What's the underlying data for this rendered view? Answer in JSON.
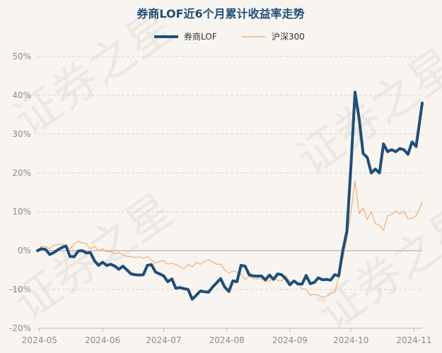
{
  "chart_data": {
    "type": "line",
    "title": "券商LOF近6个月累计收益率走势",
    "watermark": "证券之星",
    "legend_position": "top-center",
    "grid": true,
    "y_format": "percent",
    "ylim": [
      -20,
      50
    ],
    "y_ticks": [
      -20,
      -10,
      0,
      10,
      20,
      30,
      40,
      50
    ],
    "x_range": [
      "2024-04-30",
      "2024-11-05"
    ],
    "x_ticks": [
      {
        "label": "2024-05",
        "date": "2024-05-01"
      },
      {
        "label": "2024-06",
        "date": "2024-06-01"
      },
      {
        "label": "2024-07",
        "date": "2024-07-01"
      },
      {
        "label": "2024-08",
        "date": "2024-08-01"
      },
      {
        "label": "2024-09",
        "date": "2024-09-01"
      },
      {
        "label": "2024-10",
        "date": "2024-10-01"
      },
      {
        "label": "2024-11",
        "date": "2024-11-01"
      }
    ],
    "series": [
      {
        "name": "券商LOF",
        "color": "#1f4e79",
        "width": 4,
        "points": [
          [
            "2024-04-30",
            0
          ],
          [
            "2024-05-02",
            0.5
          ],
          [
            "2024-05-04",
            0.3
          ],
          [
            "2024-05-06",
            -1
          ],
          [
            "2024-05-08",
            -0.5
          ],
          [
            "2024-05-10",
            0.2
          ],
          [
            "2024-05-12",
            0.8
          ],
          [
            "2024-05-14",
            1.2
          ],
          [
            "2024-05-16",
            -1.5
          ],
          [
            "2024-05-18",
            -1.6
          ],
          [
            "2024-05-20",
            -0.1
          ],
          [
            "2024-05-22",
            0
          ],
          [
            "2024-05-24",
            -0.6
          ],
          [
            "2024-05-26",
            -0.5
          ],
          [
            "2024-05-28",
            -2.6
          ],
          [
            "2024-05-30",
            -3.8
          ],
          [
            "2024-06-01",
            -3
          ],
          [
            "2024-06-03",
            -3.8
          ],
          [
            "2024-06-05",
            -3.5
          ],
          [
            "2024-06-07",
            -4
          ],
          [
            "2024-06-09",
            -4.8
          ],
          [
            "2024-06-11",
            -4
          ],
          [
            "2024-06-13",
            -5
          ],
          [
            "2024-06-15",
            -6
          ],
          [
            "2024-06-17",
            -6.2
          ],
          [
            "2024-06-19",
            -6.3
          ],
          [
            "2024-06-21",
            -6.2
          ],
          [
            "2024-06-23",
            -3.8
          ],
          [
            "2024-06-25",
            -3.6
          ],
          [
            "2024-06-27",
            -5.5
          ],
          [
            "2024-06-29",
            -6
          ],
          [
            "2024-07-01",
            -6.5
          ],
          [
            "2024-07-03",
            -8
          ],
          [
            "2024-07-05",
            -7.3
          ],
          [
            "2024-07-07",
            -9.7
          ],
          [
            "2024-07-09",
            -9.5
          ],
          [
            "2024-07-11",
            -9.8
          ],
          [
            "2024-07-13",
            -10
          ],
          [
            "2024-07-15",
            -12.5
          ],
          [
            "2024-07-17",
            -11.5
          ],
          [
            "2024-07-19",
            -10.4
          ],
          [
            "2024-07-21",
            -10.6
          ],
          [
            "2024-07-23",
            -10.7
          ],
          [
            "2024-07-25",
            -9.4
          ],
          [
            "2024-07-27",
            -8.3
          ],
          [
            "2024-07-29",
            -7.2
          ],
          [
            "2024-07-31",
            -9.4
          ],
          [
            "2024-08-02",
            -10.5
          ],
          [
            "2024-08-04",
            -7.8
          ],
          [
            "2024-08-06",
            -8
          ],
          [
            "2024-08-08",
            -3.8
          ],
          [
            "2024-08-10",
            -4
          ],
          [
            "2024-08-12",
            -6.2
          ],
          [
            "2024-08-14",
            -6.5
          ],
          [
            "2024-08-16",
            -6.6
          ],
          [
            "2024-08-18",
            -6.5
          ],
          [
            "2024-08-20",
            -7.5
          ],
          [
            "2024-08-22",
            -6.3
          ],
          [
            "2024-08-24",
            -7.4
          ],
          [
            "2024-08-26",
            -6
          ],
          [
            "2024-08-28",
            -6.2
          ],
          [
            "2024-08-30",
            -7.3
          ],
          [
            "2024-09-01",
            -8.8
          ],
          [
            "2024-09-03",
            -7.8
          ],
          [
            "2024-09-05",
            -8.6
          ],
          [
            "2024-09-07",
            -8.6
          ],
          [
            "2024-09-09",
            -6.4
          ],
          [
            "2024-09-11",
            -8.5
          ],
          [
            "2024-09-13",
            -8.2
          ],
          [
            "2024-09-15",
            -7
          ],
          [
            "2024-09-17",
            -7.5
          ],
          [
            "2024-09-19",
            -7.4
          ],
          [
            "2024-09-21",
            -7.6
          ],
          [
            "2024-09-23",
            -6.2
          ],
          [
            "2024-09-25",
            -6.5
          ],
          [
            "2024-09-27",
            0
          ],
          [
            "2024-09-29",
            5
          ],
          [
            "2024-10-01",
            22
          ],
          [
            "2024-10-03",
            40.8
          ],
          [
            "2024-10-05",
            34
          ],
          [
            "2024-10-07",
            25
          ],
          [
            "2024-10-09",
            24
          ],
          [
            "2024-10-11",
            20
          ],
          [
            "2024-10-13",
            21
          ],
          [
            "2024-10-15",
            20
          ],
          [
            "2024-10-17",
            27.5
          ],
          [
            "2024-10-19",
            25.5
          ],
          [
            "2024-10-21",
            26
          ],
          [
            "2024-10-23",
            25.5
          ],
          [
            "2024-10-25",
            26.3
          ],
          [
            "2024-10-27",
            26
          ],
          [
            "2024-10-29",
            24.8
          ],
          [
            "2024-10-31",
            28
          ],
          [
            "2024-11-02",
            26.8
          ],
          [
            "2024-11-05",
            38
          ]
        ]
      },
      {
        "name": "沪深300",
        "color": "#f0b27a",
        "width": 1.3,
        "points": [
          [
            "2024-04-30",
            0
          ],
          [
            "2024-05-02",
            1.2
          ],
          [
            "2024-05-04",
            1
          ],
          [
            "2024-05-06",
            0.5
          ],
          [
            "2024-05-08",
            1.4
          ],
          [
            "2024-05-10",
            1.6
          ],
          [
            "2024-05-12",
            1.7
          ],
          [
            "2024-05-14",
            1
          ],
          [
            "2024-05-16",
            0.5
          ],
          [
            "2024-05-18",
            1.8
          ],
          [
            "2024-05-20",
            2.4
          ],
          [
            "2024-05-22",
            2
          ],
          [
            "2024-05-24",
            1.8
          ],
          [
            "2024-05-26",
            0.5
          ],
          [
            "2024-05-28",
            1.2
          ],
          [
            "2024-05-30",
            0
          ],
          [
            "2024-06-01",
            0.5
          ],
          [
            "2024-06-03",
            -0.3
          ],
          [
            "2024-06-05",
            -0.2
          ],
          [
            "2024-06-07",
            -0.8
          ],
          [
            "2024-06-09",
            -0.5
          ],
          [
            "2024-06-11",
            -1
          ],
          [
            "2024-06-13",
            -1.6
          ],
          [
            "2024-06-15",
            -1.5
          ],
          [
            "2024-06-17",
            -1.8
          ],
          [
            "2024-06-19",
            -1.6
          ],
          [
            "2024-06-21",
            -2
          ],
          [
            "2024-06-23",
            -1.5
          ],
          [
            "2024-06-25",
            -2.4
          ],
          [
            "2024-06-27",
            -3.2
          ],
          [
            "2024-06-29",
            -2.8
          ],
          [
            "2024-07-01",
            -2.5
          ],
          [
            "2024-07-03",
            -3.5
          ],
          [
            "2024-07-05",
            -3.2
          ],
          [
            "2024-07-07",
            -3.6
          ],
          [
            "2024-07-09",
            -4.1
          ],
          [
            "2024-07-11",
            -4.7
          ],
          [
            "2024-07-13",
            -3.6
          ],
          [
            "2024-07-15",
            -4.2
          ],
          [
            "2024-07-17",
            -3
          ],
          [
            "2024-07-19",
            -3.5
          ],
          [
            "2024-07-21",
            -2.8
          ],
          [
            "2024-07-23",
            -2.3
          ],
          [
            "2024-07-25",
            -2.9
          ],
          [
            "2024-07-27",
            -3.5
          ],
          [
            "2024-07-29",
            -3.5
          ],
          [
            "2024-07-31",
            -5
          ],
          [
            "2024-08-02",
            -5.8
          ],
          [
            "2024-08-04",
            -5.2
          ],
          [
            "2024-08-06",
            -5.5
          ],
          [
            "2024-08-08",
            -6
          ],
          [
            "2024-08-10",
            -7.5
          ],
          [
            "2024-08-12",
            -6.6
          ],
          [
            "2024-08-14",
            -7.2
          ],
          [
            "2024-08-16",
            -7.3
          ],
          [
            "2024-08-18",
            -7.2
          ],
          [
            "2024-08-20",
            -8
          ],
          [
            "2024-08-22",
            -7.8
          ],
          [
            "2024-08-24",
            -7.2
          ],
          [
            "2024-08-26",
            -7.6
          ],
          [
            "2024-08-28",
            -7.8
          ],
          [
            "2024-08-30",
            -6.5
          ],
          [
            "2024-09-01",
            -8
          ],
          [
            "2024-09-03",
            -8
          ],
          [
            "2024-09-05",
            -8.5
          ],
          [
            "2024-09-07",
            -9.8
          ],
          [
            "2024-09-09",
            -10
          ],
          [
            "2024-09-11",
            -11.5
          ],
          [
            "2024-09-13",
            -11.2
          ],
          [
            "2024-09-15",
            -11.5
          ],
          [
            "2024-09-17",
            -12
          ],
          [
            "2024-09-19",
            -11.7
          ],
          [
            "2024-09-21",
            -11
          ],
          [
            "2024-09-23",
            -10.8
          ],
          [
            "2024-09-25",
            -7
          ],
          [
            "2024-09-27",
            -2
          ],
          [
            "2024-09-29",
            3
          ],
          [
            "2024-10-01",
            10
          ],
          [
            "2024-10-03",
            18
          ],
          [
            "2024-10-05",
            9.5
          ],
          [
            "2024-10-07",
            11
          ],
          [
            "2024-10-09",
            8
          ],
          [
            "2024-10-11",
            10
          ],
          [
            "2024-10-13",
            7
          ],
          [
            "2024-10-15",
            6.5
          ],
          [
            "2024-10-17",
            5.2
          ],
          [
            "2024-10-19",
            9
          ],
          [
            "2024-10-21",
            9.3
          ],
          [
            "2024-10-23",
            10.2
          ],
          [
            "2024-10-25",
            9.5
          ],
          [
            "2024-10-27",
            10.2
          ],
          [
            "2024-10-29",
            8.2
          ],
          [
            "2024-10-31",
            8.3
          ],
          [
            "2024-11-02",
            9
          ],
          [
            "2024-11-05",
            12.4
          ]
        ]
      }
    ]
  }
}
